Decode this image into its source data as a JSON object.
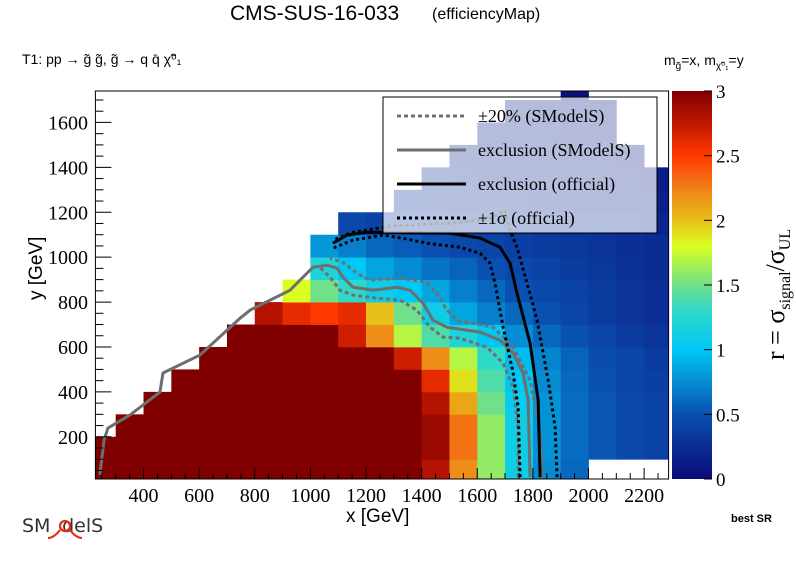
{
  "header": {
    "title": "CMS-SUS-16-033",
    "subtitle": "(efficiencyMap)",
    "process": "T1: pp → g̃ g̃, g̃ → q q̄  χ̃⁰₁",
    "mass_label": {
      "m1": "m",
      "sub1": "g̃",
      "eq1": "=x, ",
      "m2": "m",
      "sub2": "χ̃⁰₁",
      "eq2": "=y"
    }
  },
  "footer": {
    "best_sr": "best SR",
    "logo_text": "SModelS"
  },
  "chart_data": {
    "type": "heatmap",
    "title": "CMS-SUS-16-033 (efficiencyMap)",
    "xlabel": "x [GeV]",
    "ylabel": "y [GeV]",
    "zlabel": {
      "prefix": "r = σ",
      "sub1": "signal",
      "mid": "/σ",
      "sub2": "UL"
    },
    "xlim": [
      227,
      2288
    ],
    "ylim": [
      12,
      1740
    ],
    "zlim": [
      0,
      3
    ],
    "xticks": [
      400,
      600,
      800,
      1000,
      1200,
      1400,
      1600,
      1800,
      2000,
      2200
    ],
    "yticks": [
      200,
      400,
      600,
      800,
      1000,
      1200,
      1400,
      1600
    ],
    "zticks": [
      0,
      0.5,
      1,
      1.5,
      2,
      2.5,
      3
    ],
    "zticklabels": [
      "0",
      "0.5",
      "1",
      "1.5",
      "2",
      "2.5",
      "3"
    ],
    "minor_tick_step": 50,
    "bin_size": 100,
    "colorscale": [
      [
        0,
        "#0a0a78"
      ],
      [
        0.5,
        "#0a50b0"
      ],
      [
        1.0,
        "#00c8f5"
      ],
      [
        1.3,
        "#30d8c8"
      ],
      [
        1.5,
        "#70e08a"
      ],
      [
        1.8,
        "#d8ff20"
      ],
      [
        2.0,
        "#e8c018"
      ],
      [
        2.25,
        "#f08018"
      ],
      [
        2.5,
        "#ff3800"
      ],
      [
        2.75,
        "#c01800"
      ],
      [
        3.0,
        "#800000"
      ]
    ],
    "heatmap": {
      "x": [
        250,
        350,
        450,
        550,
        650,
        750,
        850,
        950,
        1050,
        1150,
        1250,
        1350,
        1450,
        1550,
        1650,
        1750,
        1850,
        1950,
        2050,
        2150,
        2250
      ],
      "y": [
        50,
        150,
        250,
        350,
        450,
        550,
        650,
        750,
        850,
        950,
        1050,
        1150,
        1250,
        1350,
        1450,
        1550,
        1650,
        1750
      ],
      "z": [
        [
          3,
          3,
          3,
          3,
          3,
          3,
          3,
          3,
          3,
          3,
          3,
          3,
          2.8,
          2.2,
          1.6,
          1.1,
          0.75,
          0.6,
          null,
          null,
          null
        ],
        [
          3,
          3,
          3,
          3,
          3,
          3,
          3,
          3,
          3,
          3,
          3,
          3,
          2.9,
          2.3,
          1.6,
          1.1,
          0.78,
          0.62,
          0.52,
          0.45,
          0.4
        ],
        [
          null,
          3,
          3,
          3,
          3,
          3,
          3,
          3,
          3,
          3,
          3,
          3,
          2.9,
          2.3,
          1.6,
          1.1,
          0.78,
          0.62,
          0.52,
          0.45,
          0.4
        ],
        [
          null,
          null,
          3,
          3,
          3,
          3,
          3,
          3,
          3,
          3,
          3,
          3,
          2.8,
          2.1,
          1.5,
          1.05,
          0.78,
          0.62,
          0.52,
          0.45,
          0.4
        ],
        [
          null,
          null,
          null,
          3,
          3,
          3,
          3,
          3,
          3,
          3,
          3,
          3,
          2.6,
          1.9,
          1.4,
          1.0,
          0.75,
          0.6,
          0.5,
          0.43,
          0.38
        ],
        [
          null,
          null,
          null,
          null,
          3,
          3,
          3,
          3,
          3,
          3,
          3,
          2.7,
          2.2,
          1.7,
          1.3,
          0.95,
          0.72,
          0.58,
          0.48,
          0.42,
          0.36
        ],
        [
          null,
          null,
          null,
          null,
          null,
          3,
          3,
          3,
          3,
          2.7,
          2.2,
          1.7,
          1.4,
          1.2,
          1.0,
          0.75,
          0.6,
          0.5,
          0.42,
          0.36,
          0.3
        ],
        [
          null,
          null,
          null,
          null,
          null,
          null,
          2.8,
          2.6,
          2.5,
          2.6,
          2.0,
          1.5,
          1.1,
          0.85,
          0.7,
          0.6,
          0.5,
          0.42,
          0.36,
          0.3,
          0.26
        ],
        [
          null,
          null,
          null,
          null,
          null,
          null,
          null,
          1.8,
          1.5,
          1.3,
          1.1,
          1.0,
          0.85,
          0.7,
          0.6,
          0.5,
          0.45,
          0.4,
          0.35,
          0.3,
          0.26
        ],
        [
          null,
          null,
          null,
          null,
          null,
          null,
          null,
          null,
          1.2,
          1.0,
          0.85,
          0.75,
          0.65,
          0.58,
          0.5,
          0.45,
          0.4,
          0.36,
          0.32,
          0.28,
          0.25
        ],
        [
          null,
          null,
          null,
          null,
          null,
          null,
          null,
          null,
          0.8,
          0.7,
          0.6,
          0.55,
          0.5,
          0.45,
          0.42,
          0.38,
          0.35,
          0.32,
          0.3,
          0.27,
          0.24
        ],
        [
          null,
          null,
          null,
          null,
          null,
          null,
          null,
          null,
          null,
          0.45,
          0.4,
          0.38,
          0.36,
          0.34,
          0.32,
          0.3,
          0.28,
          0.26,
          0.24,
          0.22,
          0.2
        ],
        [
          null,
          null,
          null,
          null,
          null,
          null,
          null,
          null,
          null,
          null,
          null,
          0.3,
          0.28,
          0.26,
          0.24,
          0.22,
          0.2,
          0.18,
          0.17,
          0.16,
          0.15
        ],
        [
          null,
          null,
          null,
          null,
          null,
          null,
          null,
          null,
          null,
          null,
          null,
          null,
          0.25,
          0.23,
          0.21,
          0.2,
          0.18,
          0.16,
          0.15,
          0.14,
          0.13
        ],
        [
          null,
          null,
          null,
          null,
          null,
          null,
          null,
          null,
          null,
          null,
          null,
          null,
          null,
          0.2,
          0.19,
          0.18,
          0.16,
          0.15,
          0.14,
          0.12,
          null
        ],
        [
          null,
          null,
          null,
          null,
          null,
          null,
          null,
          null,
          null,
          null,
          null,
          null,
          null,
          null,
          0.17,
          0.16,
          0.15,
          0.13,
          0.12,
          null,
          null
        ],
        [
          null,
          null,
          null,
          null,
          null,
          null,
          null,
          null,
          null,
          null,
          null,
          null,
          null,
          null,
          null,
          0.14,
          0.12,
          0.1,
          0.1,
          null,
          null
        ],
        [
          null,
          null,
          null,
          null,
          null,
          null,
          null,
          null,
          null,
          null,
          null,
          null,
          null,
          null,
          null,
          null,
          null,
          0.05,
          null,
          null,
          null
        ]
      ]
    },
    "contours": [
      {
        "name": "sm20-upper",
        "style": "dashed-gray",
        "points": [
          [
            1837,
            20
          ],
          [
            1826,
            216
          ],
          [
            1790,
            452
          ],
          [
            1729,
            599
          ],
          [
            1657,
            688
          ],
          [
            1527,
            719
          ],
          [
            1491,
            764
          ],
          [
            1455,
            839
          ],
          [
            1419,
            888
          ],
          [
            1322,
            906
          ],
          [
            1214,
            898
          ],
          [
            1167,
            928
          ],
          [
            1117,
            977
          ],
          [
            1070,
            995
          ]
        ]
      },
      {
        "name": "sm20-lower",
        "style": "dashed-gray",
        "points": [
          [
            1747,
            20
          ],
          [
            1747,
            243
          ],
          [
            1729,
            421
          ],
          [
            1693,
            528
          ],
          [
            1635,
            599
          ],
          [
            1538,
            639
          ],
          [
            1477,
            644
          ],
          [
            1430,
            688
          ],
          [
            1383,
            764
          ],
          [
            1322,
            809
          ],
          [
            1239,
            817
          ],
          [
            1153,
            831
          ],
          [
            1106,
            853
          ],
          [
            1070,
            911
          ],
          [
            1034,
            955
          ]
        ]
      },
      {
        "name": "exclusion-smodels",
        "style": "solid-gray",
        "points": [
          [
            1790,
            20
          ],
          [
            1783,
            363
          ],
          [
            1765,
            484
          ],
          [
            1729,
            573
          ],
          [
            1682,
            630
          ],
          [
            1610,
            666
          ],
          [
            1491,
            688
          ],
          [
            1441,
            719
          ],
          [
            1405,
            795
          ],
          [
            1358,
            853
          ],
          [
            1311,
            866
          ],
          [
            1225,
            853
          ],
          [
            1153,
            866
          ],
          [
            1117,
            911
          ],
          [
            1096,
            951
          ],
          [
            1060,
            964
          ],
          [
            1009,
            955
          ],
          [
            962,
            897
          ],
          [
            927,
            853
          ],
          [
            783,
            764
          ],
          [
            747,
            728
          ],
          [
            603,
            564
          ],
          [
            470,
            484
          ],
          [
            459,
            399
          ],
          [
            351,
            297
          ],
          [
            272,
            239
          ],
          [
            258,
            185
          ],
          [
            243,
            30
          ]
        ]
      },
      {
        "name": "exclusion-official",
        "style": "solid-black",
        "points": [
          [
            1826,
            20
          ],
          [
            1819,
            363
          ],
          [
            1790,
            617
          ],
          [
            1743,
            839
          ],
          [
            1718,
            973
          ],
          [
            1682,
            1044
          ],
          [
            1610,
            1085
          ],
          [
            1502,
            1107
          ],
          [
            1203,
            1111
          ],
          [
            1131,
            1098
          ],
          [
            1081,
            1062
          ]
        ]
      },
      {
        "name": "official-1sigma-upper",
        "style": "dotted-black",
        "points": [
          [
            1887,
            20
          ],
          [
            1880,
            243
          ],
          [
            1855,
            452
          ],
          [
            1815,
            719
          ],
          [
            1779,
            884
          ],
          [
            1743,
            1044
          ],
          [
            1718,
            1120
          ],
          [
            1700,
            1208
          ],
          [
            1640,
            1170
          ],
          [
            1500,
            1150
          ],
          [
            1300,
            1140
          ],
          [
            1150,
            1110
          ],
          [
            1081,
            1075
          ]
        ]
      },
      {
        "name": "official-1sigma-lower",
        "style": "dotted-black",
        "points": [
          [
            1754,
            20
          ],
          [
            1747,
            332
          ],
          [
            1729,
            484
          ],
          [
            1693,
            689
          ],
          [
            1664,
            883
          ],
          [
            1646,
            973
          ],
          [
            1610,
            1017
          ],
          [
            1538,
            1044
          ],
          [
            1419,
            1062
          ],
          [
            1333,
            1084
          ],
          [
            1261,
            1098
          ],
          [
            1153,
            1076
          ],
          [
            1081,
            1040
          ]
        ]
      }
    ],
    "legend": {
      "placement": "top-right",
      "entries": [
        {
          "label": "±20% (SModelS)",
          "style": "dashed-gray"
        },
        {
          "label": "exclusion (SModelS)",
          "style": "solid-gray"
        },
        {
          "label": "exclusion (official)",
          "style": "solid-black"
        },
        {
          "label": "±1σ (official)",
          "style": "dotted-black"
        }
      ]
    },
    "line_styles": {
      "dashed-gray": {
        "color": "#707070",
        "dash": "4 3"
      },
      "solid-gray": {
        "color": "#6e6e6e",
        "dash": ""
      },
      "solid-black": {
        "color": "#000000",
        "dash": ""
      },
      "dotted-black": {
        "color": "#000000",
        "dash": "3 3"
      }
    }
  }
}
